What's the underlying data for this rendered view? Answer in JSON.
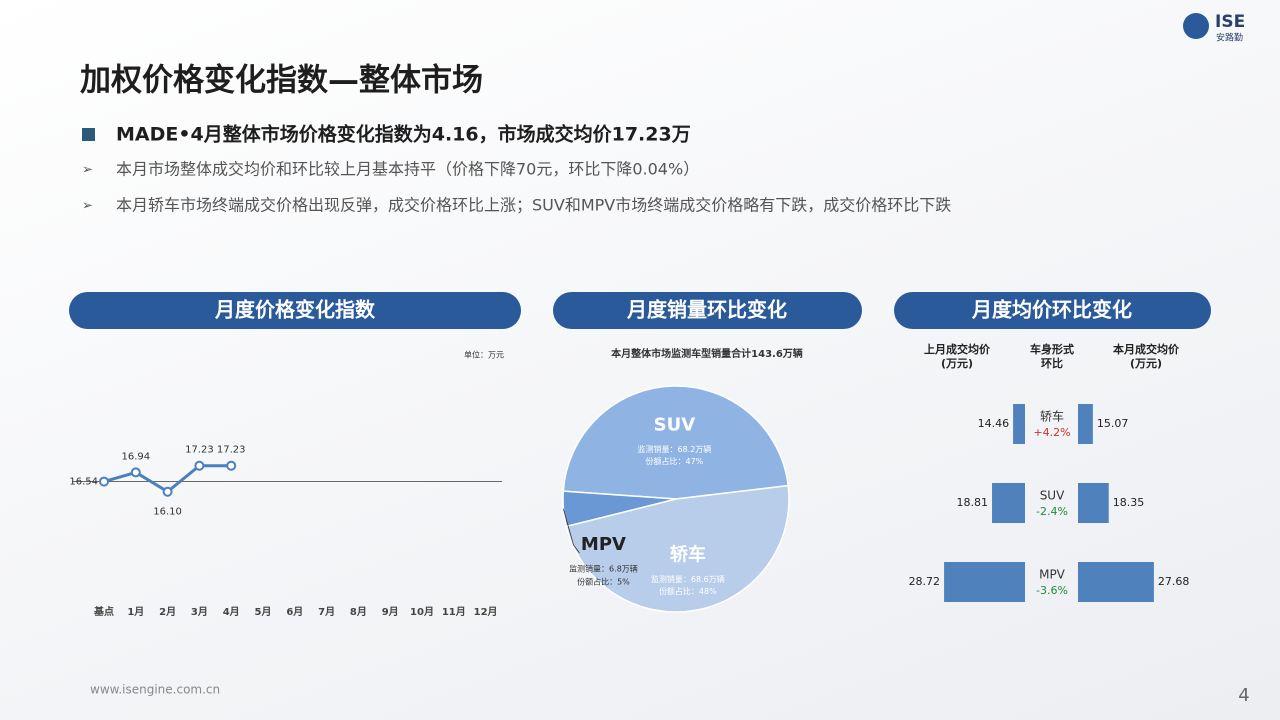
{
  "logo": {
    "mark": "ISE",
    "name": "安路勤"
  },
  "header": {
    "title": "加权价格变化指数—整体市场",
    "headline": "MADE•4月整体市场价格变化指数为4.16，市场成交均价17.23万",
    "bullets": [
      "本月市场整体成交均价和环比较上月基本持平（价格下降70元，环比下降0.04%）",
      "本月轿车市场终端成交价格出现反弹，成交价格环比上涨；SUV和MPV市场终端成交价格略有下跌，成交价格环比下跌"
    ]
  },
  "footer": {
    "url": "www.isengine.com.cn",
    "page": "4"
  },
  "chart_data": [
    {
      "type": "line",
      "title": "月度价格变化指数",
      "unit": "单位：万元",
      "color": "#4a7fc0",
      "categories": [
        "基点",
        "1月",
        "2月",
        "3月",
        "4月",
        "5月",
        "6月",
        "7月",
        "8月",
        "9月",
        "10月",
        "11月",
        "12月"
      ],
      "values": [
        16.54,
        16.94,
        16.1,
        17.23,
        17.23,
        null,
        null,
        null,
        null,
        null,
        null,
        null,
        null
      ],
      "value_labels": [
        "16.54",
        "16.94",
        "16.10",
        "17.23",
        "17.23",
        null,
        null,
        null,
        null,
        null,
        null,
        null,
        null
      ],
      "ylim": [
        15,
        19
      ]
    },
    {
      "type": "pie",
      "title": "月度销量环比变化",
      "subtitle": "本月整体市场监测车型销量合计143.6万辆",
      "categories": [
        "SUV",
        "轿车",
        "MPV"
      ],
      "values": [
        47,
        48,
        5
      ],
      "colors": [
        "#8fb4e3",
        "#b7cdea",
        "#6a98d4"
      ],
      "volume_labels": [
        "监测销量：68.2万辆",
        "监测销量：68.6万辆",
        "监测销量：6.8万辆"
      ],
      "value_labels": [
        "份额占比：47%",
        "份额占比：48%",
        "份额占比：5%"
      ]
    },
    {
      "type": "butterfly",
      "title": "月度均价环比变化",
      "category_header": [
        "车身形式",
        "环比"
      ],
      "categories": [
        "轿车",
        "SUV",
        "MPV"
      ],
      "xlim": [
        12,
        30
      ],
      "series": [
        {
          "name": "上月成交均价",
          "unit": "(万元)",
          "color": "#4f81bd",
          "values": [
            14.46,
            18.81,
            28.72
          ]
        },
        {
          "name": "本月成交均价",
          "unit": "(万元)",
          "color": "#4f81bd",
          "values": [
            15.07,
            18.35,
            27.68
          ]
        }
      ],
      "changes": [
        4.2,
        -2.4,
        -3.6
      ],
      "change_labels": [
        "+4.2%",
        "-2.4%",
        "-3.6%"
      ],
      "change_colors": {
        "up": "#c0392b",
        "down": "#1e8c3a"
      }
    }
  ]
}
